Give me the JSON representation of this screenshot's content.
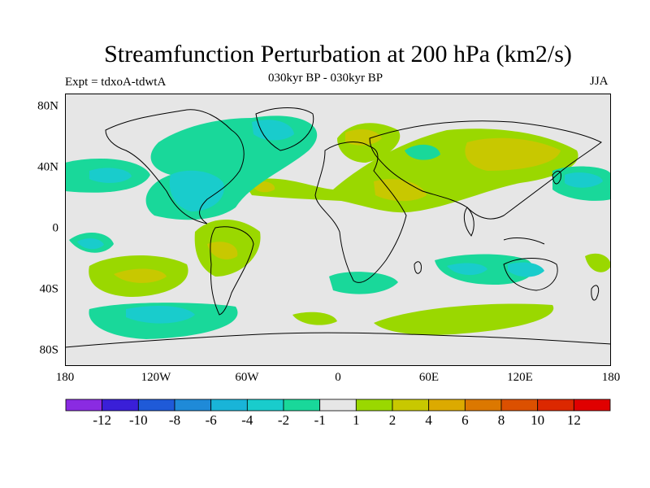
{
  "header": {
    "title": "Streamfunction Perturbation at 200 hPa (km2/s)",
    "experiment": "Expt = tdxoA-tdwtA",
    "period": "030kyr BP - 030kyr BP",
    "season": "JJA"
  },
  "map": {
    "projection": "cylindrical equidistant",
    "lon_range": [
      -180,
      180
    ],
    "lat_range": [
      -90,
      90
    ],
    "background_color": "#e6e6e6",
    "lat_labels": [
      "80N",
      "40N",
      "0",
      "40S",
      "80S"
    ],
    "lon_labels": [
      "180",
      "120W",
      "60W",
      "0",
      "60E",
      "120E",
      "180"
    ]
  },
  "colorbar": {
    "colors": [
      "#8a2be2",
      "#3a1fd8",
      "#1f5ad8",
      "#1f8ad8",
      "#19b4d8",
      "#19cccc",
      "#19d89a",
      "#e6e6e6",
      "#9ad800",
      "#c8c800",
      "#dcaa00",
      "#dc7800",
      "#dc5000",
      "#dc2800",
      "#e00000"
    ],
    "labels": [
      "-12",
      "-10",
      "-8",
      "-6",
      "-4",
      "-2",
      "-1",
      "1",
      "2",
      "4",
      "6",
      "8",
      "10",
      "12"
    ]
  },
  "field": {
    "levels": {
      "light_green": "1 to 2",
      "yellow": "2 to 4",
      "green": "-2 to -1",
      "cyan": "-4 to -2"
    },
    "colors": {
      "light_green": "#9ad800",
      "yellow": "#c8c800",
      "green": "#19d89a",
      "cyan": "#19cccc"
    }
  }
}
